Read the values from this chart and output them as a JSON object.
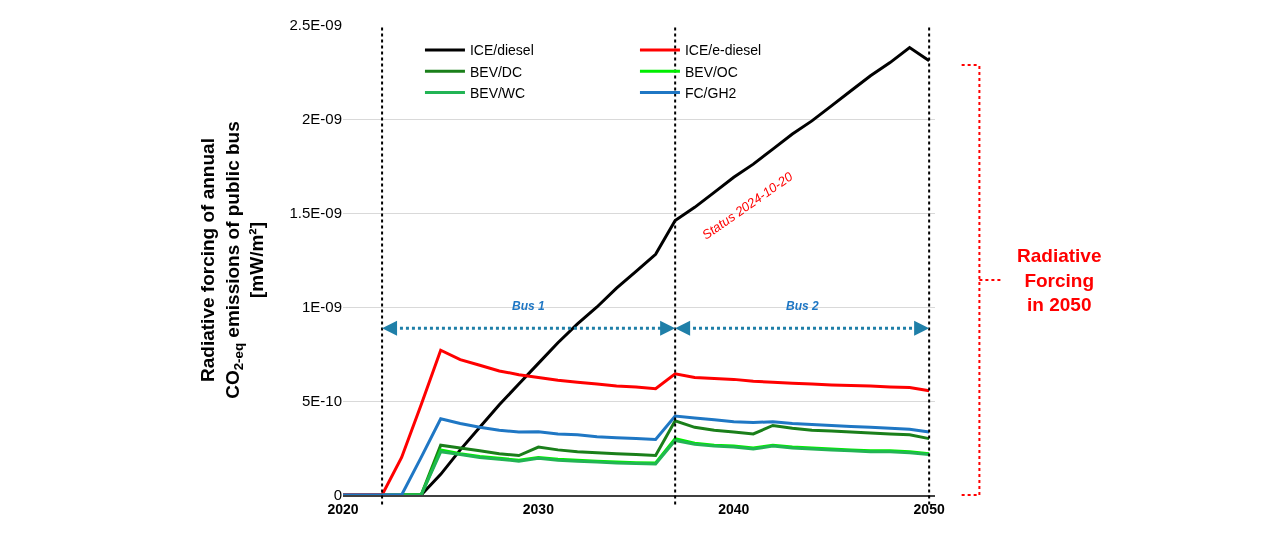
{
  "chart_data": {
    "type": "line",
    "ylabel": "Radiative forcing of annual\nCO$_{2-eq}$ emissions of public bus\n[mW/m²]",
    "x": [
      2020,
      2021,
      2022,
      2023,
      2024,
      2025,
      2026,
      2027,
      2028,
      2029,
      2030,
      2031,
      2032,
      2033,
      2034,
      2035,
      2036,
      2037,
      2038,
      2039,
      2040,
      2041,
      2042,
      2043,
      2044,
      2045,
      2046,
      2047,
      2048,
      2049,
      2050
    ],
    "series": [
      {
        "name": "ICE/diesel",
        "color": "#000000",
        "values": [
          0,
          0,
          0,
          0,
          0,
          1.1e-10,
          2.4e-10,
          3.6e-10,
          4.8e-10,
          5.9e-10,
          7e-10,
          8.1e-10,
          9.1e-10,
          1e-09,
          1.1e-09,
          1.19e-09,
          1.28e-09,
          1.46e-09,
          1.53e-09,
          1.61e-09,
          1.69e-09,
          1.76e-09,
          1.84e-09,
          1.92e-09,
          1.99e-09,
          2.07e-09,
          2.15e-09,
          2.23e-09,
          2.3e-09,
          2.38e-09,
          2.31e-09
        ]
      },
      {
        "name": "ICE/e-diesel",
        "color": "#ff0000",
        "values": [
          0,
          0,
          0,
          2e-10,
          4.8e-10,
          7.7e-10,
          7.2e-10,
          6.9e-10,
          6.6e-10,
          6.4e-10,
          6.25e-10,
          6.1e-10,
          6e-10,
          5.9e-10,
          5.8e-10,
          5.75e-10,
          5.65e-10,
          6.45e-10,
          6.25e-10,
          6.2e-10,
          6.15e-10,
          6.05e-10,
          6e-10,
          5.95e-10,
          5.9e-10,
          5.85e-10,
          5.82e-10,
          5.8e-10,
          5.75e-10,
          5.72e-10,
          5.55e-10
        ]
      },
      {
        "name": "BEV/DC",
        "color": "#1a7f1a",
        "values": [
          null,
          null,
          null,
          0,
          0,
          2.65e-10,
          2.5e-10,
          2.35e-10,
          2.2e-10,
          2.1e-10,
          2.55e-10,
          2.4e-10,
          2.3e-10,
          2.25e-10,
          2.2e-10,
          2.15e-10,
          2.1e-10,
          3.95e-10,
          3.6e-10,
          3.45e-10,
          3.35e-10,
          3.25e-10,
          3.7e-10,
          3.55e-10,
          3.45e-10,
          3.4e-10,
          3.35e-10,
          3.3e-10,
          3.25e-10,
          3.2e-10,
          3e-10
        ]
      },
      {
        "name": "BEV/OC",
        "color": "#00ee00",
        "values": [
          null,
          null,
          null,
          0,
          0,
          2.4e-10,
          2.2e-10,
          2.05e-10,
          1.95e-10,
          1.85e-10,
          2e-10,
          1.9e-10,
          1.85e-10,
          1.8e-10,
          1.75e-10,
          1.72e-10,
          1.7e-10,
          3e-10,
          2.75e-10,
          2.65e-10,
          2.6e-10,
          2.5e-10,
          2.65e-10,
          2.55e-10,
          2.5e-10,
          2.45e-10,
          2.4e-10,
          2.35e-10,
          2.35e-10,
          2.3e-10,
          2.2e-10
        ]
      },
      {
        "name": "BEV/WC",
        "color": "#22b455",
        "values": [
          null,
          null,
          0,
          0,
          0,
          2.3e-10,
          2.15e-10,
          2e-10,
          1.9e-10,
          1.8e-10,
          1.95e-10,
          1.85e-10,
          1.8e-10,
          1.75e-10,
          1.7e-10,
          1.68e-10,
          1.65e-10,
          2.9e-10,
          2.7e-10,
          2.6e-10,
          2.55e-10,
          2.45e-10,
          2.6e-10,
          2.5e-10,
          2.45e-10,
          2.4e-10,
          2.35e-10,
          2.3e-10,
          2.3e-10,
          2.25e-10,
          2.15e-10
        ]
      },
      {
        "name": "FC/GH2",
        "color": "#1f77c4",
        "values": [
          0,
          0,
          0,
          0,
          2e-10,
          4.05e-10,
          3.8e-10,
          3.6e-10,
          3.45e-10,
          3.35e-10,
          3.37e-10,
          3.25e-10,
          3.2e-10,
          3.1e-10,
          3.05e-10,
          3e-10,
          2.95e-10,
          4.2e-10,
          4.1e-10,
          4e-10,
          3.9e-10,
          3.85e-10,
          3.9e-10,
          3.8e-10,
          3.75e-10,
          3.7e-10,
          3.65e-10,
          3.6e-10,
          3.55e-10,
          3.5e-10,
          3.35e-10
        ]
      }
    ],
    "xlim": [
      2020,
      2050.3
    ],
    "xticks": [
      2020,
      2030,
      2040,
      2050
    ],
    "ylim": [
      0,
      2.5e-09
    ],
    "yticks": [
      {
        "value": 0,
        "label": "0"
      },
      {
        "value": 5e-10,
        "label": "5E-10"
      },
      {
        "value": 1e-09,
        "label": "1E-09"
      },
      {
        "value": 1.5e-09,
        "label": "1.5E-09"
      },
      {
        "value": 2e-09,
        "label": "2E-09"
      },
      {
        "value": 2.5e-09,
        "label": "2.5E-09"
      }
    ],
    "grid": "y",
    "legend": "top",
    "marker": "none",
    "line_style": "solid",
    "ref_lines": [
      {
        "axis": "x",
        "value": 2022,
        "label": null,
        "color": "#000000",
        "line_style": "dotted"
      },
      {
        "axis": "x",
        "value": 2037,
        "label": null,
        "color": "#000000",
        "line_style": "dotted"
      },
      {
        "axis": "x",
        "value": 2050,
        "label": null,
        "color": "#000000",
        "line_style": "dotted"
      }
    ],
    "annotations": [
      "Bus 1",
      "Bus 2",
      "Status 2024-10-20",
      "Radiative\nForcing\nin 2050"
    ]
  }
}
